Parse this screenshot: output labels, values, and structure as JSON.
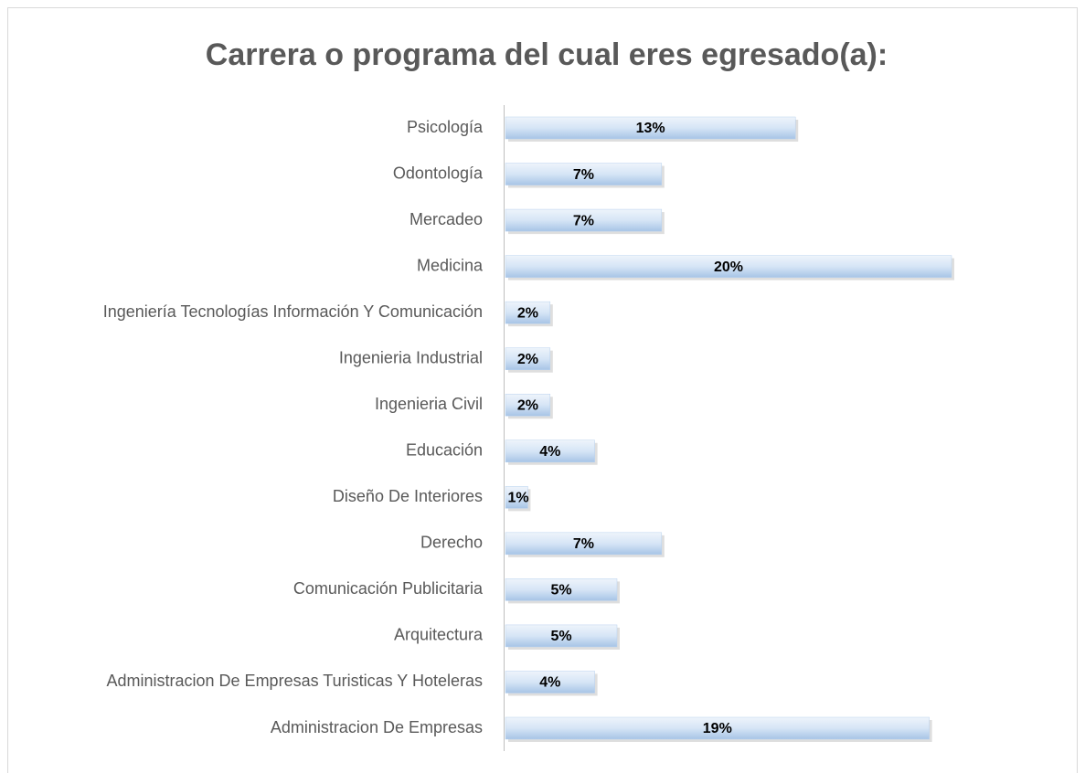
{
  "chart_data": {
    "type": "bar",
    "orientation": "horizontal",
    "title": "Carrera o programa del cual eres egresado(a):",
    "categories": [
      "Psicología",
      "Odontología",
      "Mercadeo",
      "Medicina",
      "Ingeniería Tecnologías Información Y Comunicación",
      "Ingenieria Industrial",
      "Ingenieria Civil",
      "Educación",
      "Diseño De Interiores",
      "Derecho",
      "Comunicación Publicitaria",
      "Arquitectura",
      "Administracion De Empresas Turisticas Y Hoteleras",
      "Administracion De Empresas"
    ],
    "values": [
      13,
      7,
      7,
      20,
      2,
      2,
      2,
      4,
      1,
      7,
      5,
      5,
      4,
      19
    ],
    "value_labels": [
      "13%",
      "7%",
      "7%",
      "20%",
      "2%",
      "2%",
      "2%",
      "4%",
      "1%",
      "7%",
      "5%",
      "5%",
      "4%",
      "19%"
    ],
    "color": "#b8d1ee"
  }
}
